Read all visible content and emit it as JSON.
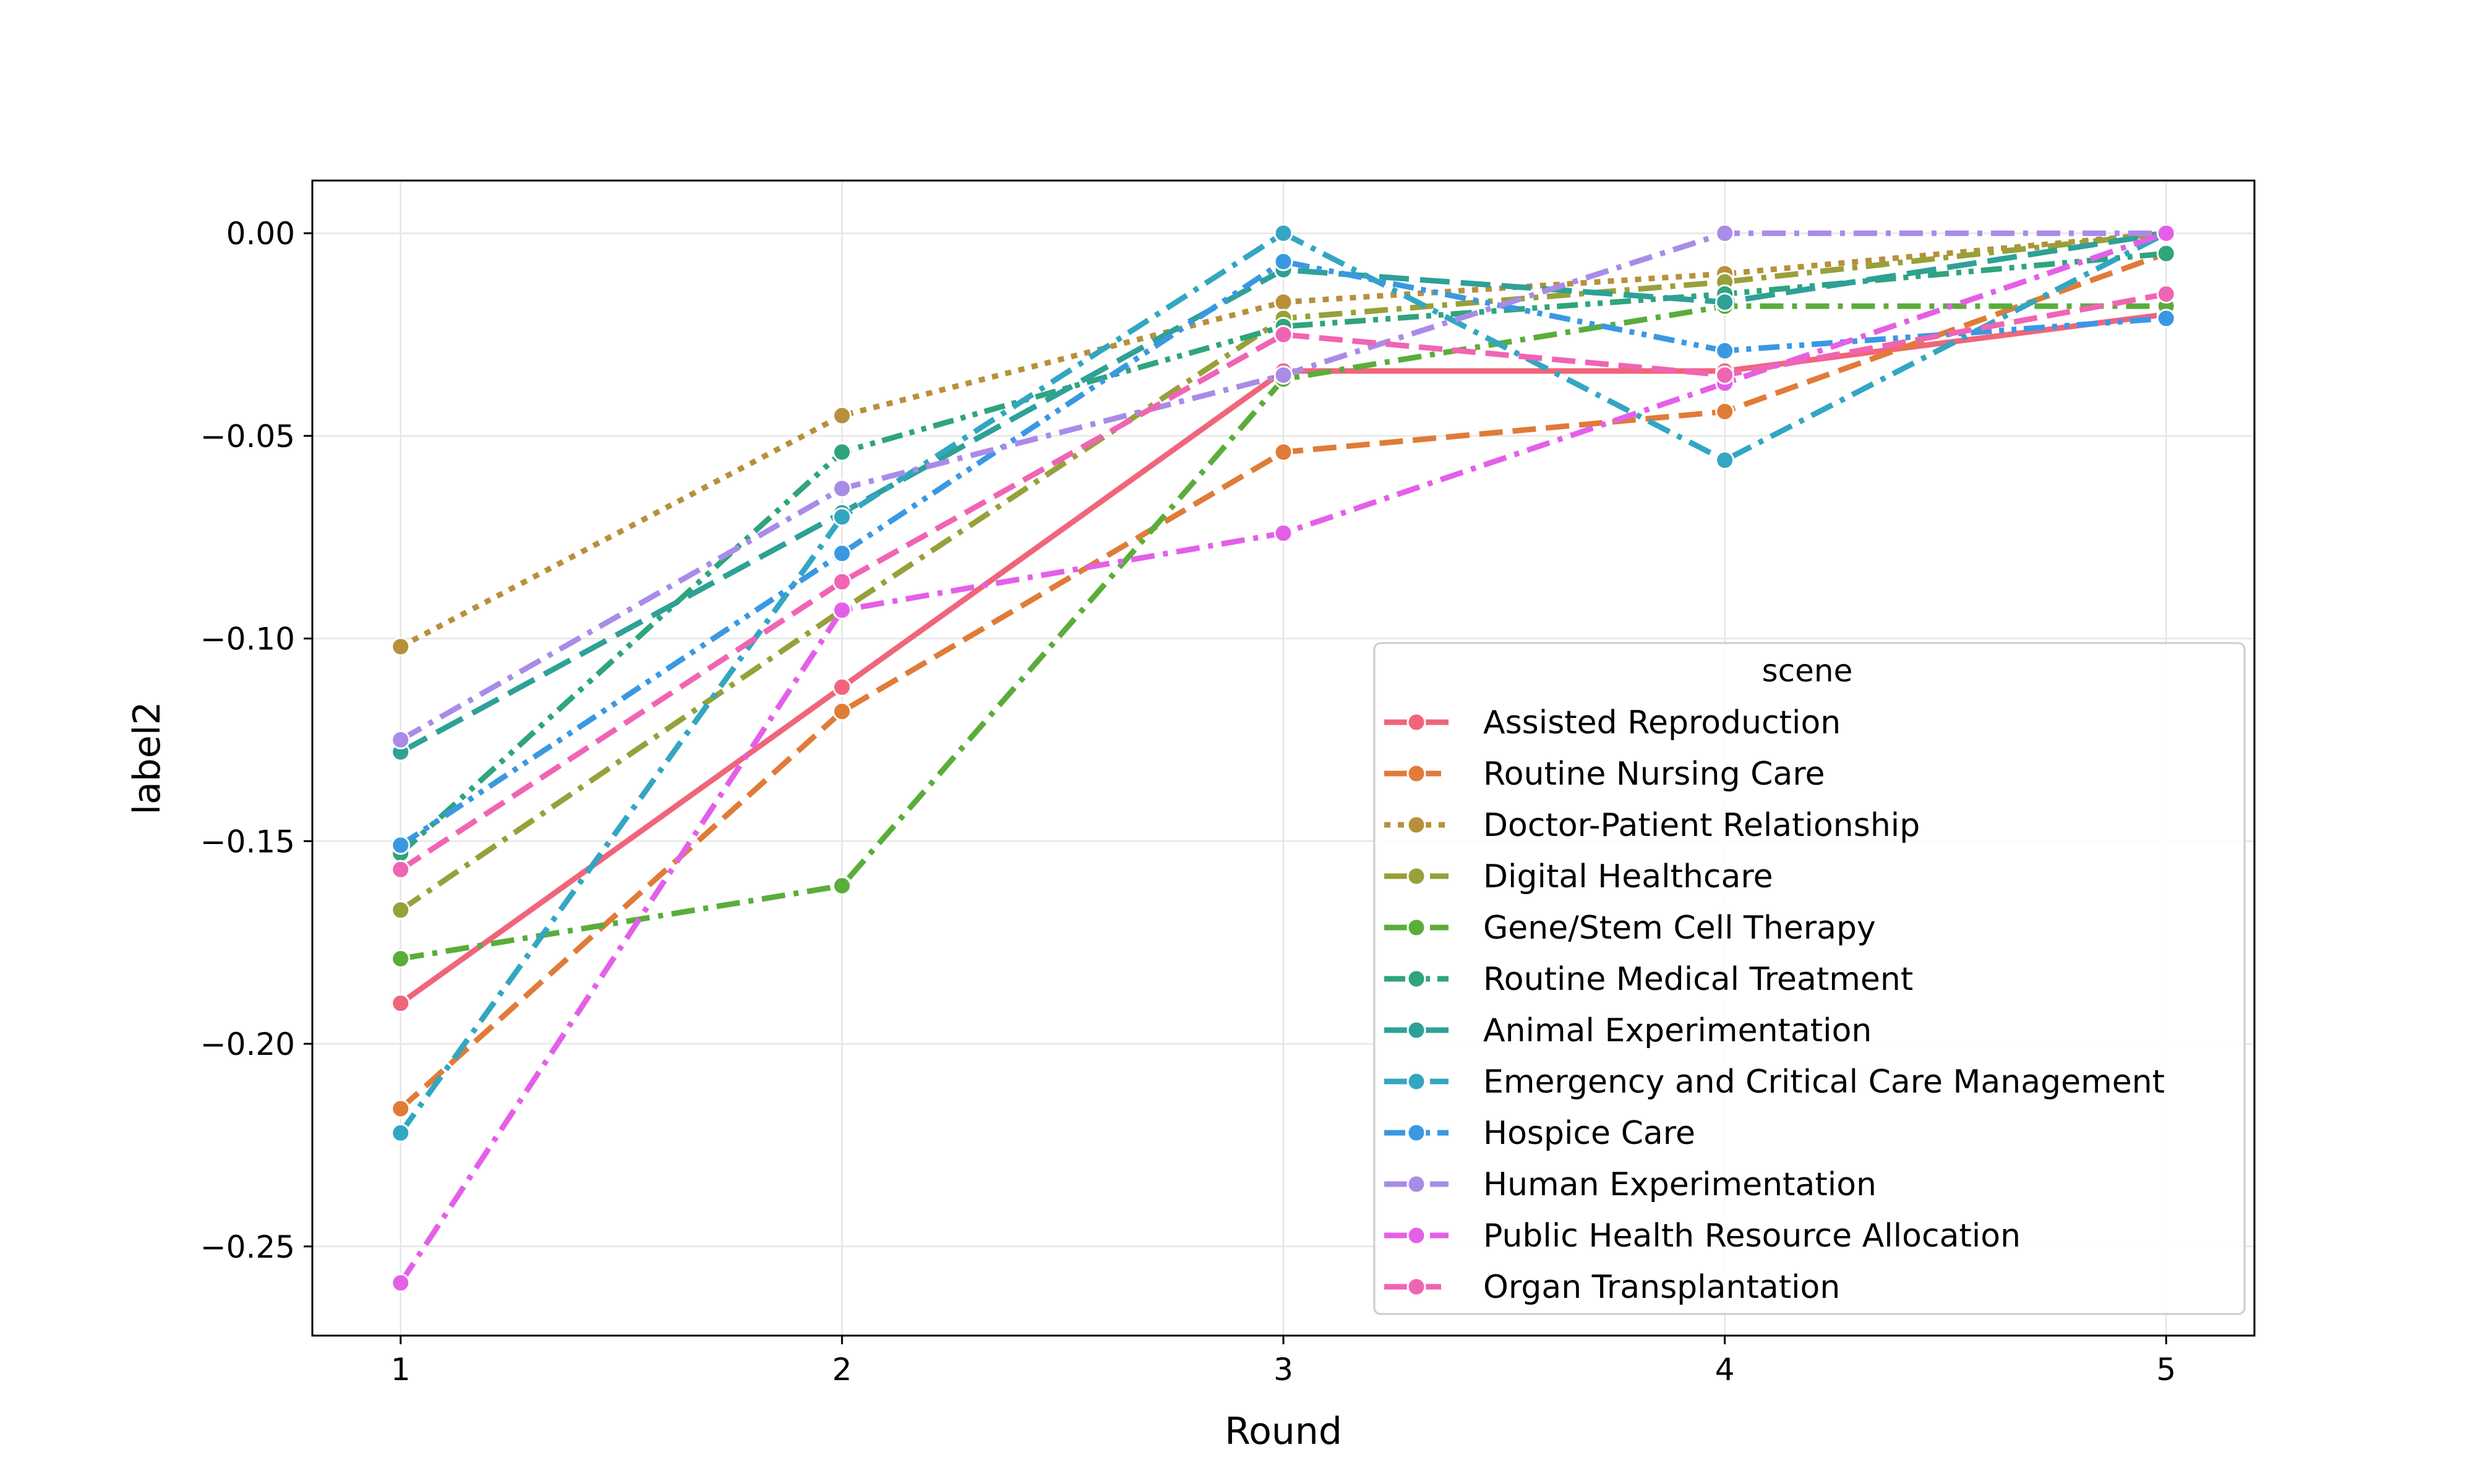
{
  "chart_data": {
    "type": "line",
    "xlabel": "Round",
    "ylabel": "label2",
    "x": [
      1,
      2,
      3,
      4,
      5
    ],
    "x_ticks": [
      "1",
      "2",
      "3",
      "4",
      "5"
    ],
    "y_ticks": [
      "0.00",
      "−0.05",
      "−0.10",
      "−0.15",
      "−0.20",
      "−0.25"
    ],
    "y_tick_values": [
      0.0,
      -0.05,
      -0.1,
      -0.15,
      -0.2,
      -0.25
    ],
    "xlim": [
      0.8,
      5.2
    ],
    "ylim": [
      -0.272,
      0.013
    ],
    "grid": true,
    "legend_title": "scene",
    "legend_position": "lower-right",
    "series": [
      {
        "name": "Assisted Reproduction",
        "color": "#f0657a",
        "dash": "solid",
        "values": [
          -0.19,
          -0.112,
          -0.034,
          -0.034,
          -0.02
        ]
      },
      {
        "name": "Routine Nursing Care",
        "color": "#e07b38",
        "dash": "dash",
        "values": [
          -0.216,
          -0.118,
          -0.054,
          -0.044,
          -0.005
        ]
      },
      {
        "name": "Doctor-Patient Relationship",
        "color": "#b8903c",
        "dash": "dot",
        "values": [
          -0.102,
          -0.045,
          -0.017,
          -0.01,
          0.0
        ]
      },
      {
        "name": "Digital Healthcare",
        "color": "#98a03a",
        "dash": "dashdot",
        "values": [
          -0.167,
          -0.093,
          -0.021,
          -0.012,
          0.0
        ]
      },
      {
        "name": "Gene/Stem Cell Therapy",
        "color": "#5aad3a",
        "dash": "dashdot",
        "values": [
          -0.179,
          -0.161,
          -0.036,
          -0.018,
          -0.018
        ]
      },
      {
        "name": "Routine Medical Treatment",
        "color": "#2fa47d",
        "dash": "dashdotdot",
        "values": [
          -0.153,
          -0.054,
          -0.023,
          -0.015,
          -0.005
        ]
      },
      {
        "name": "Animal Experimentation",
        "color": "#2ea197",
        "dash": "longdash",
        "values": [
          -0.128,
          -0.069,
          -0.009,
          -0.017,
          0.0
        ]
      },
      {
        "name": "Emergency and Critical Care Management",
        "color": "#33a6c2",
        "dash": "dashdot",
        "values": [
          -0.222,
          -0.07,
          0.0,
          -0.056,
          0.0
        ]
      },
      {
        "name": "Hospice Care",
        "color": "#3a98e3",
        "dash": "dashdotdot",
        "values": [
          -0.151,
          -0.079,
          -0.007,
          -0.029,
          -0.021
        ]
      },
      {
        "name": "Human Experimentation",
        "color": "#a98be8",
        "dash": "dashdot",
        "values": [
          -0.125,
          -0.063,
          -0.035,
          0.0,
          0.0
        ]
      },
      {
        "name": "Public Health Resource Allocation",
        "color": "#e45fe8",
        "dash": "dashdot",
        "values": [
          -0.259,
          -0.093,
          -0.074,
          -0.037,
          0.0
        ]
      },
      {
        "name": "Organ Transplantation",
        "color": "#f064b4",
        "dash": "dash",
        "values": [
          -0.157,
          -0.086,
          -0.025,
          -0.035,
          -0.015
        ]
      }
    ]
  }
}
